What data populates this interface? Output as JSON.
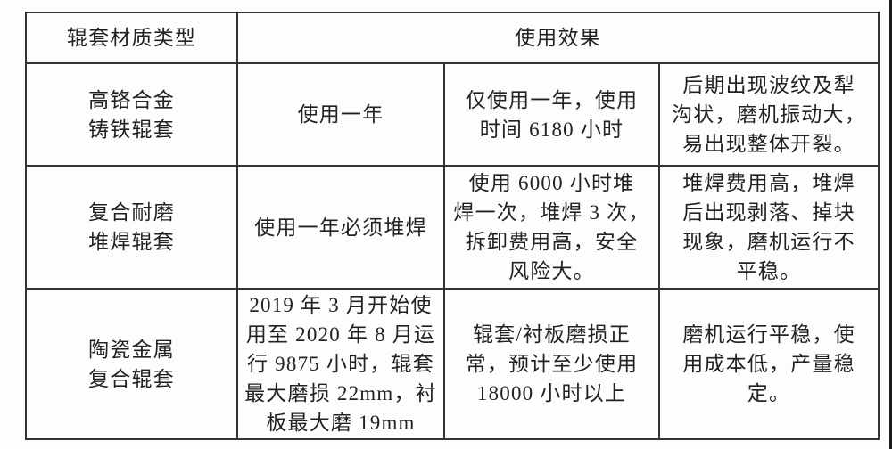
{
  "page": {
    "background": "#fdfdfd",
    "border_color": "#333333",
    "text_color": "#222222"
  },
  "table": {
    "header": {
      "material_type": "辊套材质类型",
      "usage_effect": "使用效果"
    },
    "rows": [
      {
        "material": [
          "高铬合金",
          "铸铁辊套"
        ],
        "service_life": [
          "使用一年"
        ],
        "usage_detail": [
          "仅使用一年，使用",
          "时间 6180 小时"
        ],
        "evaluation": [
          "后期出现波纹及犁",
          "沟状，磨机振动大，",
          "易出现整体开裂。"
        ]
      },
      {
        "material": [
          "复合耐磨",
          "堆焊辊套"
        ],
        "service_life": [
          "使用一年必须堆焊"
        ],
        "usage_detail": [
          "使用 6000 小时堆",
          "焊一次，堆焊 3 次，",
          "拆卸费用高，安全",
          "风险大。"
        ],
        "evaluation": [
          "堆焊费用高，堆焊",
          "后出现剥落、掉块",
          "现象，磨机运行不",
          "平稳。"
        ]
      },
      {
        "material": [
          "陶瓷金属",
          "复合辊套"
        ],
        "service_life": [
          "2019 年 3 月开始使",
          "用至 2020 年 8 月运",
          "行 9875 小时，辊套",
          "最大磨损 22mm，衬",
          "板最大磨 19mm"
        ],
        "usage_detail": [
          "辊套/衬板磨损正",
          "常，预计至少使用",
          "18000 小时以上"
        ],
        "evaluation": [
          "磨机运行平稳，使",
          "用成本低，产量稳",
          "定。"
        ]
      }
    ]
  }
}
